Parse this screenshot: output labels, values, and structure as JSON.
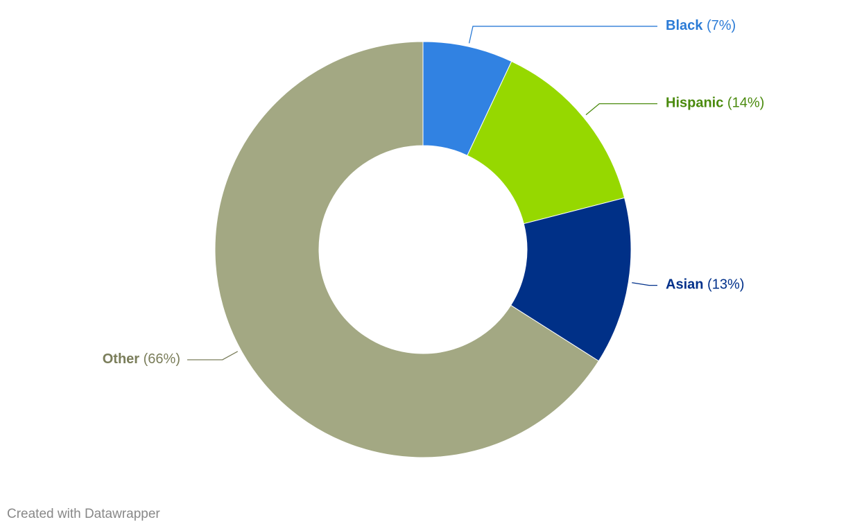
{
  "chart_data": {
    "type": "donut",
    "categories": [
      "Black",
      "Hispanic",
      "Asian",
      "Other"
    ],
    "values": [
      7,
      14,
      13,
      66
    ],
    "value_labels": [
      "(7%)",
      "(14%)",
      "(13%)",
      "(66%)"
    ],
    "colors": [
      "#3182e2",
      "#96d800",
      "#003087",
      "#a3a883"
    ],
    "label_colors": [
      "#2b7bd6",
      "#4a8a0d",
      "#00308a",
      "#7a7d5a"
    ],
    "credit": "Created with Datawrapper"
  }
}
